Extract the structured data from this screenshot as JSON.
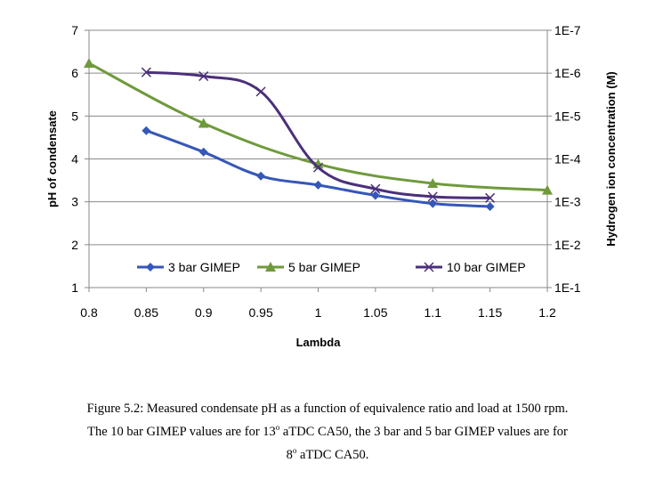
{
  "chart_data": {
    "type": "line",
    "xlabel": "Lambda",
    "ylabel": "pH of condensate",
    "y2label": "Hydrogen ion concentration (M)",
    "xlim": [
      0.8,
      1.2
    ],
    "ylim": [
      1,
      7
    ],
    "x_ticks": [
      "0.8",
      "0.85",
      "0.9",
      "0.95",
      "1",
      "1.05",
      "1.1",
      "1.15",
      "1.2"
    ],
    "y_ticks": [
      "1",
      "2",
      "3",
      "4",
      "5",
      "6",
      "7"
    ],
    "y2_ticks": [
      "1E-1",
      "1E-2",
      "1E-3",
      "1E-4",
      "1E-5",
      "1E-6",
      "1E-7"
    ],
    "grid": "horizontal",
    "legend_position": "bottom-inside",
    "series": [
      {
        "name": "3 bar GIMEP",
        "color": "#3557b8",
        "marker": "diamond",
        "x": [
          0.85,
          0.9,
          0.95,
          1.0,
          1.05,
          1.1,
          1.15
        ],
        "y": [
          4.66,
          4.16,
          3.6,
          3.39,
          3.15,
          2.96,
          2.89
        ]
      },
      {
        "name": "5 bar GIMEP",
        "color": "#6f9a3c",
        "marker": "triangle",
        "x": [
          0.8,
          0.9,
          1.0,
          1.1,
          1.2
        ],
        "y": [
          6.23,
          4.83,
          3.88,
          3.43,
          3.27
        ]
      },
      {
        "name": "10 bar GIMEP",
        "color": "#4b2f7a",
        "marker": "x",
        "x": [
          0.85,
          0.9,
          0.95,
          1.0,
          1.05,
          1.1,
          1.15
        ],
        "y": [
          6.02,
          5.93,
          5.57,
          3.8,
          3.3,
          3.12,
          3.09
        ]
      }
    ]
  },
  "caption": {
    "line1": "Figure 5.2: Measured condensate pH as a function of equivalence ratio and load at 1500 rpm.",
    "line2_pre": "The 10 bar GIMEP values are for 13",
    "line2_sup": "o",
    "line2_post": " aTDC CA50, the 3 bar and 5 bar GIMEP values are for",
    "line3_pre": "8",
    "line3_sup": "o",
    "line3_post": " aTDC CA50."
  }
}
